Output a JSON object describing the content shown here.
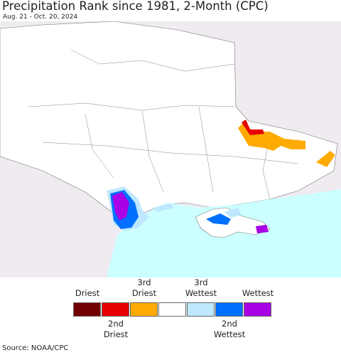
{
  "header": {
    "title": "Precipitation Rank since 1981, 2-Month (CPC)",
    "subtitle": "Aug. 21 - Oct. 20, 2024"
  },
  "legend": {
    "items": [
      {
        "color": "#730000",
        "label": "Driest"
      },
      {
        "color": "#e60000",
        "label": "2nd Driest"
      },
      {
        "color": "#ffaa00",
        "label": "3rd Driest"
      },
      {
        "color": "#ffffff"
      },
      {
        "color": "#bee8ff",
        "label": "3rd Wettest"
      },
      {
        "color": "#0070ff",
        "label": "2nd Wettest"
      },
      {
        "color": "#a900e6",
        "label": "Wettest"
      }
    ]
  },
  "source": "Source: NOAA/CPC"
}
